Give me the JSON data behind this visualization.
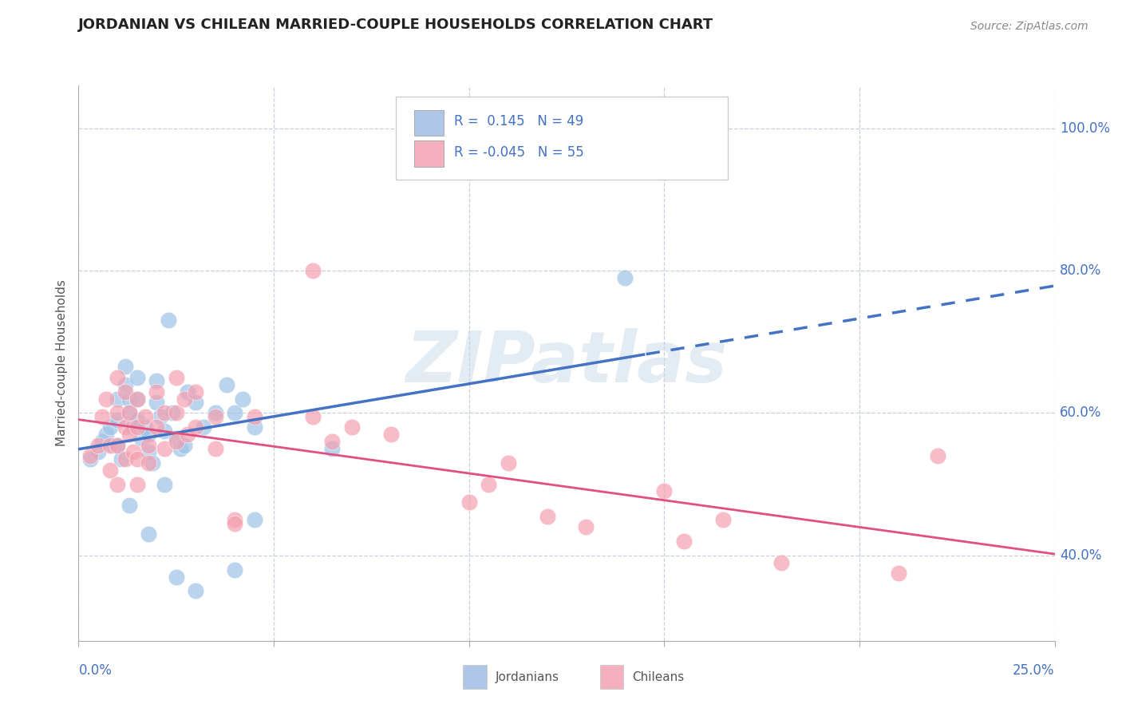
{
  "title": "JORDANIAN VS CHILEAN MARRIED-COUPLE HOUSEHOLDS CORRELATION CHART",
  "source": "Source: ZipAtlas.com",
  "ylabel": "Married-couple Households",
  "ytick_labels": [
    "40.0%",
    "60.0%",
    "80.0%",
    "100.0%"
  ],
  "ytick_values": [
    0.4,
    0.6,
    0.8,
    1.0
  ],
  "xlim": [
    0.0,
    0.25
  ],
  "ylim": [
    0.28,
    1.06
  ],
  "jordan_color": "#9dc3e6",
  "chile_color": "#f4a0b0",
  "jordan_line_color": "#4472c4",
  "chile_line_color": "#e05080",
  "background_color": "#ffffff",
  "grid_color": "#c8d0dc",
  "watermark_color": "#c8d8e8",
  "jordan_points": [
    [
      0.003,
      0.535
    ],
    [
      0.005,
      0.545
    ],
    [
      0.006,
      0.56
    ],
    [
      0.007,
      0.57
    ],
    [
      0.008,
      0.58
    ],
    [
      0.009,
      0.555
    ],
    [
      0.01,
      0.62
    ],
    [
      0.01,
      0.59
    ],
    [
      0.01,
      0.555
    ],
    [
      0.011,
      0.535
    ],
    [
      0.012,
      0.665
    ],
    [
      0.012,
      0.64
    ],
    [
      0.013,
      0.62
    ],
    [
      0.013,
      0.6
    ],
    [
      0.014,
      0.58
    ],
    [
      0.015,
      0.65
    ],
    [
      0.015,
      0.62
    ],
    [
      0.015,
      0.59
    ],
    [
      0.016,
      0.565
    ],
    [
      0.017,
      0.58
    ],
    [
      0.018,
      0.57
    ],
    [
      0.018,
      0.545
    ],
    [
      0.019,
      0.53
    ],
    [
      0.02,
      0.645
    ],
    [
      0.02,
      0.615
    ],
    [
      0.021,
      0.595
    ],
    [
      0.022,
      0.575
    ],
    [
      0.023,
      0.73
    ],
    [
      0.024,
      0.6
    ],
    [
      0.025,
      0.565
    ],
    [
      0.026,
      0.55
    ],
    [
      0.027,
      0.555
    ],
    [
      0.028,
      0.63
    ],
    [
      0.03,
      0.615
    ],
    [
      0.032,
      0.58
    ],
    [
      0.035,
      0.6
    ],
    [
      0.038,
      0.64
    ],
    [
      0.04,
      0.6
    ],
    [
      0.042,
      0.62
    ],
    [
      0.045,
      0.58
    ],
    [
      0.013,
      0.47
    ],
    [
      0.018,
      0.43
    ],
    [
      0.022,
      0.5
    ],
    [
      0.025,
      0.37
    ],
    [
      0.03,
      0.35
    ],
    [
      0.04,
      0.38
    ],
    [
      0.045,
      0.45
    ],
    [
      0.065,
      0.55
    ],
    [
      0.14,
      0.79
    ]
  ],
  "chile_points": [
    [
      0.003,
      0.54
    ],
    [
      0.005,
      0.555
    ],
    [
      0.006,
      0.595
    ],
    [
      0.007,
      0.62
    ],
    [
      0.008,
      0.555
    ],
    [
      0.008,
      0.52
    ],
    [
      0.01,
      0.65
    ],
    [
      0.01,
      0.6
    ],
    [
      0.01,
      0.555
    ],
    [
      0.01,
      0.5
    ],
    [
      0.012,
      0.63
    ],
    [
      0.012,
      0.58
    ],
    [
      0.012,
      0.535
    ],
    [
      0.013,
      0.6
    ],
    [
      0.013,
      0.57
    ],
    [
      0.014,
      0.545
    ],
    [
      0.015,
      0.62
    ],
    [
      0.015,
      0.58
    ],
    [
      0.015,
      0.535
    ],
    [
      0.015,
      0.5
    ],
    [
      0.017,
      0.595
    ],
    [
      0.018,
      0.555
    ],
    [
      0.018,
      0.53
    ],
    [
      0.02,
      0.63
    ],
    [
      0.02,
      0.58
    ],
    [
      0.022,
      0.6
    ],
    [
      0.022,
      0.55
    ],
    [
      0.025,
      0.65
    ],
    [
      0.025,
      0.6
    ],
    [
      0.025,
      0.56
    ],
    [
      0.027,
      0.62
    ],
    [
      0.028,
      0.57
    ],
    [
      0.03,
      0.63
    ],
    [
      0.03,
      0.58
    ],
    [
      0.035,
      0.595
    ],
    [
      0.035,
      0.55
    ],
    [
      0.04,
      0.45
    ],
    [
      0.04,
      0.445
    ],
    [
      0.045,
      0.595
    ],
    [
      0.06,
      0.595
    ],
    [
      0.06,
      0.8
    ],
    [
      0.065,
      0.56
    ],
    [
      0.07,
      0.58
    ],
    [
      0.08,
      0.57
    ],
    [
      0.1,
      0.475
    ],
    [
      0.105,
      0.5
    ],
    [
      0.11,
      0.53
    ],
    [
      0.12,
      0.455
    ],
    [
      0.13,
      0.44
    ],
    [
      0.15,
      0.49
    ],
    [
      0.155,
      0.42
    ],
    [
      0.165,
      0.45
    ],
    [
      0.18,
      0.39
    ],
    [
      0.21,
      0.375
    ],
    [
      0.22,
      0.54
    ]
  ],
  "xtick_positions": [
    0.0,
    0.05,
    0.1,
    0.15,
    0.2,
    0.25
  ]
}
